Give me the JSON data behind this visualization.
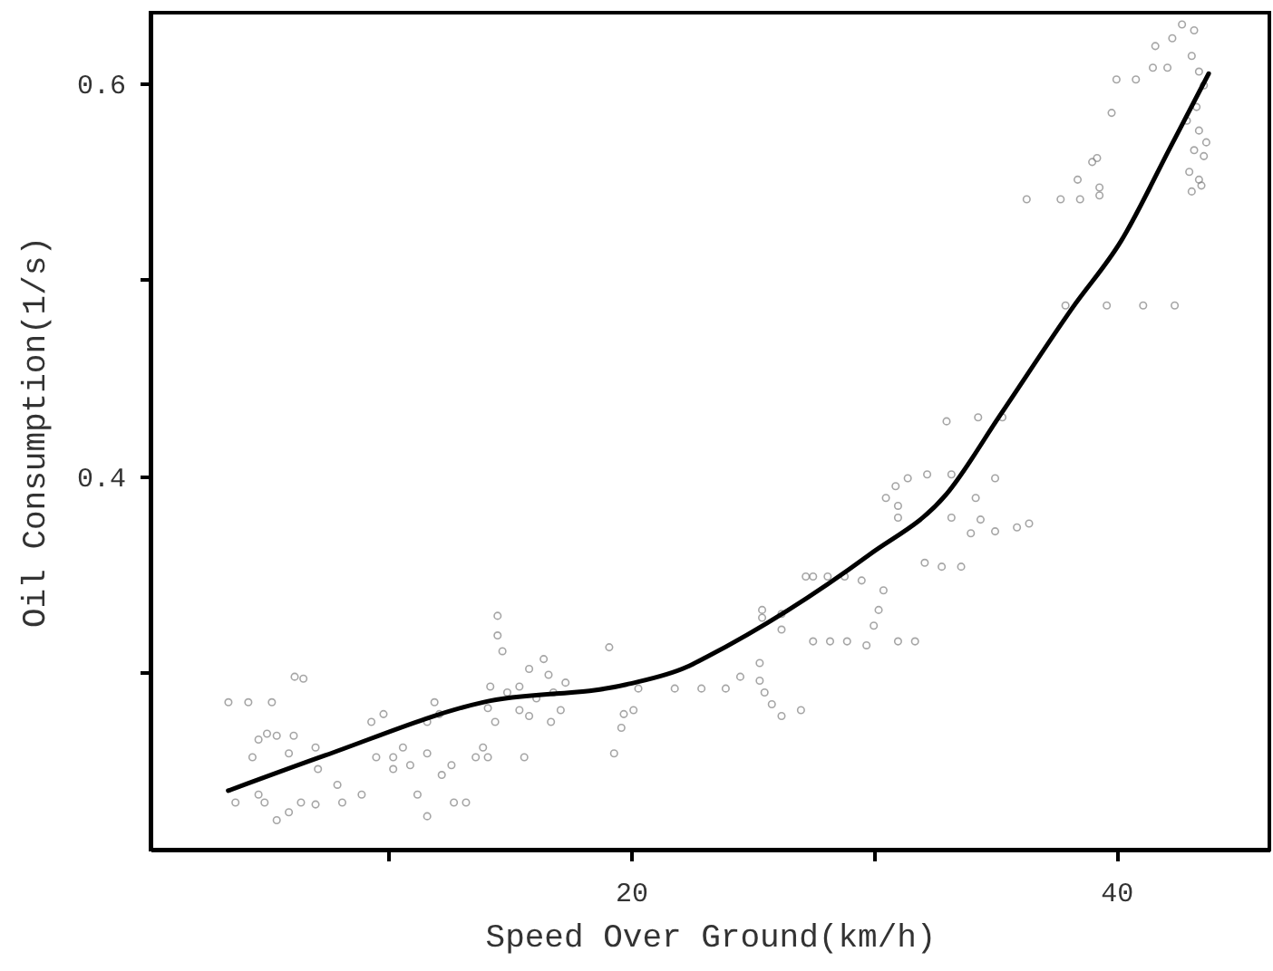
{
  "chart_data": {
    "type": "scatter",
    "xlabel": "Speed Over Ground(km/h)",
    "ylabel": "Oil Consumption(1/s)",
    "xlim": [
      0.2,
      46.3
    ],
    "ylim": [
      0.21,
      0.636
    ],
    "xticks": [
      {
        "value": 10,
        "label": null
      },
      20,
      {
        "value": 30,
        "label": null
      },
      40
    ],
    "yticks": [
      {
        "value": 0.3,
        "label": null
      },
      0.4,
      {
        "value": 0.5,
        "label": null
      },
      0.6
    ],
    "grid": false,
    "series": [
      {
        "marker": "circle",
        "color": "#808080",
        "x": [
          3.41,
          4.23,
          5.2,
          6.14,
          6.5,
          4.65,
          5.0,
          4.4,
          5.4,
          6.1,
          7.0,
          5.9,
          7.1,
          3.7,
          4.65,
          4.9,
          5.4,
          5.9,
          6.4,
          7.0,
          7.9,
          8.1,
          8.9,
          9.3,
          9.8,
          9.5,
          10.2,
          10.2,
          10.9,
          10.6,
          11.2,
          11.6,
          11.6,
          11.9,
          12.1,
          11.6,
          12.2,
          12.6,
          12.7,
          13.2,
          13.6,
          13.9,
          14.1,
          14.5,
          14.5,
          14.7,
          14.2,
          14.1,
          14.4,
          14.9,
          15.4,
          15.6,
          15.8,
          16.1,
          16.4,
          16.6,
          16.8,
          17.1,
          17.3,
          16.7,
          15.4,
          15.8,
          19.1,
          19.3,
          19.6,
          19.7,
          20.1,
          20.3,
          21.8,
          22.9,
          23.9,
          24.5,
          25.3,
          25.4,
          25.4,
          26.2,
          26.2,
          25.3,
          25.5,
          25.8,
          26.2,
          27.0,
          27.2,
          27.5,
          28.1,
          28.8,
          29.5,
          27.5,
          28.2,
          28.9,
          29.7,
          30.0,
          30.2,
          30.4,
          31.0,
          31.7,
          30.5,
          30.9,
          31.0,
          31.0,
          31.4,
          32.1,
          32.8,
          33.6,
          32.2,
          33.2,
          33.2,
          33.0,
          34.3,
          35.3,
          34.2,
          34.0,
          34.4,
          35.0,
          35.0,
          35.9,
          36.4,
          36.3,
          37.7,
          38.5,
          39.3,
          39.3,
          38.4,
          39.0,
          39.2,
          37.9,
          39.6,
          41.1,
          42.4,
          39.8,
          40.0,
          40.8,
          41.5,
          42.1,
          41.6,
          42.3,
          42.7,
          43.2,
          43.1,
          43.4,
          43.6,
          43.3,
          42.9,
          43.4,
          43.7,
          43.2,
          43.6,
          43.0,
          43.4,
          43.1,
          43.5
        ],
        "values": [
          0.285,
          0.285,
          0.285,
          0.298,
          0.297,
          0.266,
          0.269,
          0.257,
          0.268,
          0.268,
          0.262,
          0.259,
          0.251,
          0.234,
          0.238,
          0.234,
          0.225,
          0.229,
          0.234,
          0.233,
          0.243,
          0.234,
          0.238,
          0.275,
          0.279,
          0.257,
          0.257,
          0.251,
          0.253,
          0.262,
          0.238,
          0.227,
          0.275,
          0.285,
          0.279,
          0.259,
          0.248,
          0.253,
          0.234,
          0.234,
          0.257,
          0.262,
          0.257,
          0.329,
          0.319,
          0.311,
          0.293,
          0.282,
          0.275,
          0.29,
          0.293,
          0.257,
          0.302,
          0.287,
          0.307,
          0.299,
          0.29,
          0.281,
          0.295,
          0.275,
          0.281,
          0.278,
          0.313,
          0.259,
          0.272,
          0.279,
          0.281,
          0.292,
          0.292,
          0.292,
          0.292,
          0.298,
          0.305,
          0.328,
          0.332,
          0.33,
          0.322,
          0.296,
          0.29,
          0.284,
          0.278,
          0.281,
          0.349,
          0.349,
          0.349,
          0.349,
          0.347,
          0.316,
          0.316,
          0.316,
          0.314,
          0.324,
          0.332,
          0.342,
          0.316,
          0.316,
          0.389,
          0.395,
          0.385,
          0.379,
          0.399,
          0.356,
          0.354,
          0.354,
          0.401,
          0.401,
          0.379,
          0.428,
          0.43,
          0.43,
          0.389,
          0.371,
          0.378,
          0.372,
          0.399,
          0.374,
          0.376,
          0.541,
          0.541,
          0.541,
          0.543,
          0.547,
          0.551,
          0.56,
          0.562,
          0.487,
          0.487,
          0.487,
          0.487,
          0.585,
          0.602,
          0.602,
          0.608,
          0.608,
          0.619,
          0.623,
          0.63,
          0.627,
          0.614,
          0.606,
          0.599,
          0.588,
          0.581,
          0.576,
          0.57,
          0.566,
          0.563,
          0.555,
          0.551,
          0.545,
          0.548
        ]
      },
      {
        "type": "line",
        "marker": "none",
        "line_style": "solid",
        "color": "#000000",
        "x": [
          3.4,
          7.4,
          13.9,
          19.8,
          22.3,
          23.1,
          29.8,
          33.0,
          35.2,
          38.2,
          40.2,
          42.2,
          43.8
        ],
        "values": [
          0.24,
          0.258,
          0.285,
          0.294,
          0.303,
          0.308,
          0.36,
          0.391,
          0.431,
          0.486,
          0.52,
          0.567,
          0.605
        ]
      }
    ]
  }
}
